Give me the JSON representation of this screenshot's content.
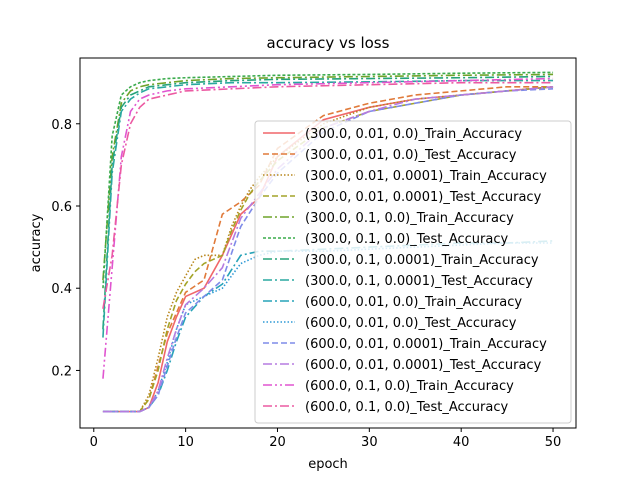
{
  "chart_data": {
    "type": "line",
    "title": "accuracy vs loss",
    "xlabel": "epoch",
    "ylabel": "accuracy",
    "xlim": [
      -1.5,
      52.5
    ],
    "ylim": [
      0.06,
      0.96
    ],
    "xticks": [
      0,
      10,
      20,
      30,
      40,
      50
    ],
    "yticks": [
      0.2,
      0.4,
      0.6,
      0.8
    ],
    "grid": false,
    "legend_position": "lower-right",
    "series": [
      {
        "name": "(300.0, 0.01, 0.0)_Train_Accuracy",
        "color": "#f0676a",
        "dash": "solid",
        "x": [
          1,
          2,
          3,
          4,
          5,
          6,
          7,
          8,
          9,
          10,
          12,
          14,
          16,
          18,
          20,
          25,
          30,
          35,
          40,
          45,
          50
        ],
        "y": [
          0.1,
          0.1,
          0.1,
          0.1,
          0.1,
          0.11,
          0.17,
          0.27,
          0.33,
          0.38,
          0.4,
          0.48,
          0.58,
          0.62,
          0.72,
          0.81,
          0.84,
          0.86,
          0.87,
          0.88,
          0.89
        ]
      },
      {
        "name": "(300.0, 0.01, 0.0)_Test_Accuracy",
        "color": "#e07a3a",
        "dash": "6,3",
        "x": [
          1,
          2,
          3,
          4,
          5,
          6,
          7,
          8,
          9,
          10,
          12,
          14,
          16,
          18,
          20,
          25,
          30,
          35,
          40,
          45,
          50
        ],
        "y": [
          0.1,
          0.1,
          0.1,
          0.1,
          0.1,
          0.13,
          0.21,
          0.29,
          0.34,
          0.39,
          0.42,
          0.58,
          0.61,
          0.65,
          0.74,
          0.82,
          0.85,
          0.87,
          0.88,
          0.89,
          0.89
        ]
      },
      {
        "name": "(300.0, 0.01, 0.0001)_Train_Accuracy",
        "color": "#b8871e",
        "dash": "1.5,2",
        "x": [
          1,
          2,
          3,
          4,
          5,
          6,
          7,
          8,
          9,
          10,
          11,
          12,
          13,
          14,
          15,
          16,
          17,
          18,
          20,
          25,
          30,
          35,
          40,
          45,
          50
        ],
        "y": [
          0.1,
          0.1,
          0.1,
          0.1,
          0.1,
          0.14,
          0.23,
          0.33,
          0.39,
          0.43,
          0.47,
          0.48,
          0.48,
          0.48,
          0.55,
          0.6,
          0.64,
          0.67,
          0.72,
          0.8,
          0.84,
          0.86,
          0.87,
          0.88,
          0.89
        ]
      },
      {
        "name": "(300.0, 0.01, 0.0001)_Test_Accuracy",
        "color": "#a4a428",
        "dash": "6,3",
        "x": [
          1,
          2,
          3,
          4,
          5,
          6,
          7,
          8,
          9,
          10,
          11,
          12,
          13,
          14,
          15,
          16,
          17,
          18,
          20,
          25,
          30,
          35,
          40,
          45,
          50
        ],
        "y": [
          0.1,
          0.1,
          0.1,
          0.1,
          0.1,
          0.13,
          0.2,
          0.3,
          0.37,
          0.41,
          0.44,
          0.46,
          0.47,
          0.48,
          0.54,
          0.59,
          0.63,
          0.66,
          0.71,
          0.79,
          0.83,
          0.85,
          0.87,
          0.88,
          0.89
        ]
      },
      {
        "name": "(300.0, 0.1, 0.0)_Train_Accuracy",
        "color": "#6fa32a",
        "dash": "9,3,2,3",
        "x": [
          1,
          2,
          3,
          4,
          5,
          6,
          8,
          10,
          15,
          20,
          30,
          40,
          50
        ],
        "y": [
          0.42,
          0.72,
          0.85,
          0.88,
          0.89,
          0.895,
          0.9,
          0.905,
          0.91,
          0.912,
          0.915,
          0.918,
          0.92
        ]
      },
      {
        "name": "(300.0, 0.1, 0.0)_Test_Accuracy",
        "color": "#3aab4c",
        "dash": "3,2",
        "x": [
          1,
          2,
          3,
          4,
          5,
          6,
          8,
          10,
          15,
          20,
          30,
          40,
          50
        ],
        "y": [
          0.4,
          0.77,
          0.87,
          0.89,
          0.9,
          0.905,
          0.91,
          0.912,
          0.915,
          0.918,
          0.92,
          0.923,
          0.925
        ]
      },
      {
        "name": "(300.0, 0.1, 0.0001)_Train_Accuracy",
        "color": "#26a37a",
        "dash": "9,3,2,3",
        "x": [
          1,
          2,
          3,
          4,
          5,
          6,
          8,
          10,
          15,
          20,
          30,
          40,
          50
        ],
        "y": [
          0.3,
          0.7,
          0.84,
          0.87,
          0.88,
          0.89,
          0.895,
          0.9,
          0.905,
          0.908,
          0.91,
          0.912,
          0.915
        ]
      },
      {
        "name": "(300.0, 0.1, 0.0001)_Test_Accuracy",
        "color": "#2aa8a0",
        "dash": "9,3,2,3",
        "x": [
          1,
          2,
          3,
          4,
          5,
          6,
          8,
          10,
          15,
          20,
          30,
          40,
          50
        ],
        "y": [
          0.28,
          0.68,
          0.83,
          0.86,
          0.875,
          0.885,
          0.89,
          0.895,
          0.9,
          0.9,
          0.902,
          0.905,
          0.905
        ]
      },
      {
        "name": "(600.0, 0.01, 0.0)_Train_Accuracy",
        "color": "#27a3b8",
        "dash": "9,3,2,3",
        "x": [
          1,
          2,
          3,
          4,
          5,
          6,
          7,
          8,
          9,
          10,
          12,
          14,
          16,
          18,
          20,
          25,
          30,
          35,
          40,
          45,
          50
        ],
        "y": [
          0.1,
          0.1,
          0.1,
          0.1,
          0.1,
          0.11,
          0.14,
          0.2,
          0.27,
          0.33,
          0.38,
          0.41,
          0.48,
          0.49,
          0.49,
          0.495,
          0.5,
          0.505,
          0.51,
          0.51,
          0.515
        ]
      },
      {
        "name": "(600.0, 0.01, 0.0)_Test_Accuracy",
        "color": "#2f9ad6",
        "dash": "1.5,2",
        "x": [
          1,
          2,
          3,
          4,
          5,
          6,
          7,
          8,
          9,
          10,
          12,
          14,
          16,
          18,
          20,
          25,
          30,
          35,
          40,
          45,
          50
        ],
        "y": [
          0.1,
          0.1,
          0.1,
          0.1,
          0.1,
          0.11,
          0.15,
          0.22,
          0.3,
          0.36,
          0.38,
          0.4,
          0.46,
          0.48,
          0.49,
          0.49,
          0.495,
          0.5,
          0.505,
          0.51,
          0.51
        ]
      },
      {
        "name": "(600.0, 0.01, 0.0001)_Train_Accuracy",
        "color": "#7e8be8",
        "dash": "6,3",
        "x": [
          1,
          2,
          3,
          4,
          5,
          6,
          7,
          8,
          9,
          10,
          12,
          14,
          16,
          18,
          20,
          25,
          30,
          35,
          40,
          45,
          50
        ],
        "y": [
          0.1,
          0.1,
          0.1,
          0.1,
          0.1,
          0.11,
          0.14,
          0.21,
          0.28,
          0.34,
          0.38,
          0.42,
          0.55,
          0.62,
          0.68,
          0.78,
          0.83,
          0.85,
          0.87,
          0.88,
          0.885
        ]
      },
      {
        "name": "(600.0, 0.01, 0.0001)_Test_Accuracy",
        "color": "#b57be0",
        "dash": "9,3,2,3",
        "x": [
          1,
          2,
          3,
          4,
          5,
          6,
          7,
          8,
          9,
          10,
          12,
          14,
          16,
          18,
          20,
          25,
          30,
          35,
          40,
          45,
          50
        ],
        "y": [
          0.1,
          0.1,
          0.1,
          0.1,
          0.1,
          0.11,
          0.15,
          0.23,
          0.3,
          0.36,
          0.4,
          0.45,
          0.57,
          0.63,
          0.69,
          0.79,
          0.83,
          0.86,
          0.87,
          0.88,
          0.89
        ]
      },
      {
        "name": "(600.0, 0.1, 0.0)_Train_Accuracy",
        "color": "#e055d0",
        "dash": "9,3,2,3,2,3",
        "x": [
          1,
          2,
          3,
          4,
          5,
          6,
          8,
          10,
          15,
          20,
          30,
          40,
          50
        ],
        "y": [
          0.18,
          0.45,
          0.72,
          0.83,
          0.86,
          0.87,
          0.88,
          0.885,
          0.89,
          0.895,
          0.9,
          0.905,
          0.91
        ]
      },
      {
        "name": "(600.0, 0.1, 0.0)_Test_Accuracy",
        "color": "#ec5aa2",
        "dash": "9,3,2,3",
        "x": [
          1,
          2,
          3,
          4,
          5,
          6,
          8,
          10,
          15,
          20,
          30,
          40,
          50
        ],
        "y": [
          0.35,
          0.48,
          0.7,
          0.8,
          0.84,
          0.86,
          0.87,
          0.88,
          0.885,
          0.89,
          0.895,
          0.9,
          0.9
        ]
      }
    ]
  }
}
